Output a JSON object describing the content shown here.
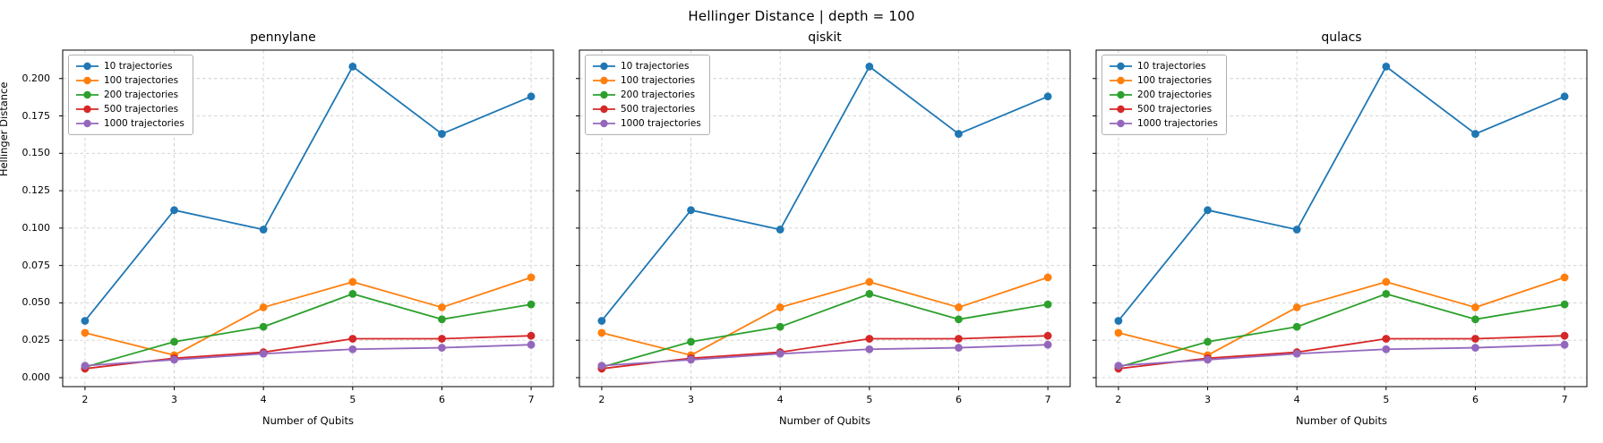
{
  "figure": {
    "title": "Hellinger Distance  |  depth = 100",
    "background_color": "#ffffff"
  },
  "axes": {
    "xlabel": "Number of Qubits",
    "ylabel": "Hellinger Distance",
    "xticks": [
      2,
      3,
      4,
      5,
      6,
      7
    ],
    "xtick_labels": [
      "2",
      "3",
      "4",
      "5",
      "6",
      "7"
    ],
    "yticks": [
      0.0,
      0.025,
      0.05,
      0.075,
      0.1,
      0.125,
      0.15,
      0.175,
      0.2
    ],
    "ytick_labels": [
      "0.000",
      "0.025",
      "0.050",
      "0.075",
      "0.100",
      "0.125",
      "0.150",
      "0.175",
      "0.200"
    ],
    "xlim": [
      1.75,
      7.25
    ],
    "ylim": [
      -0.006,
      0.219
    ],
    "grid": "dashed",
    "grid_color": "#cfcfcf",
    "spine_color": "#000000",
    "legend_position": "upper-left"
  },
  "chart_data": [
    {
      "type": "line",
      "title": "pennylane",
      "xlabel": "Number of Qubits",
      "ylabel": "Hellinger Distance",
      "x": [
        2,
        3,
        4,
        5,
        6,
        7
      ],
      "series": [
        {
          "name": "10 trajectories",
          "color": "#1f77b4",
          "values": [
            0.038,
            0.112,
            0.099,
            0.208,
            0.163,
            0.188
          ]
        },
        {
          "name": "100 trajectories",
          "color": "#ff7f0e",
          "values": [
            0.03,
            0.015,
            0.047,
            0.064,
            0.047,
            0.067
          ]
        },
        {
          "name": "200 trajectories",
          "color": "#2ca02c",
          "values": [
            0.007,
            0.024,
            0.034,
            0.056,
            0.039,
            0.049
          ]
        },
        {
          "name": "500 trajectories",
          "color": "#d62728",
          "values": [
            0.006,
            0.013,
            0.017,
            0.026,
            0.026,
            0.028
          ]
        },
        {
          "name": "1000 trajectories",
          "color": "#9467bd",
          "values": [
            0.008,
            0.012,
            0.016,
            0.019,
            0.02,
            0.022
          ]
        }
      ],
      "xlim": [
        1.75,
        7.25
      ],
      "ylim": [
        -0.006,
        0.219
      ]
    },
    {
      "type": "line",
      "title": "qiskit",
      "xlabel": "Number of Qubits",
      "ylabel": "Hellinger Distance",
      "x": [
        2,
        3,
        4,
        5,
        6,
        7
      ],
      "series": [
        {
          "name": "10 trajectories",
          "color": "#1f77b4",
          "values": [
            0.038,
            0.112,
            0.099,
            0.208,
            0.163,
            0.188
          ]
        },
        {
          "name": "100 trajectories",
          "color": "#ff7f0e",
          "values": [
            0.03,
            0.015,
            0.047,
            0.064,
            0.047,
            0.067
          ]
        },
        {
          "name": "200 trajectories",
          "color": "#2ca02c",
          "values": [
            0.007,
            0.024,
            0.034,
            0.056,
            0.039,
            0.049
          ]
        },
        {
          "name": "500 trajectories",
          "color": "#d62728",
          "values": [
            0.006,
            0.013,
            0.017,
            0.026,
            0.026,
            0.028
          ]
        },
        {
          "name": "1000 trajectories",
          "color": "#9467bd",
          "values": [
            0.008,
            0.012,
            0.016,
            0.019,
            0.02,
            0.022
          ]
        }
      ],
      "xlim": [
        1.75,
        7.25
      ],
      "ylim": [
        -0.006,
        0.219
      ]
    },
    {
      "type": "line",
      "title": "qulacs",
      "xlabel": "Number of Qubits",
      "ylabel": "Hellinger Distance",
      "x": [
        2,
        3,
        4,
        5,
        6,
        7
      ],
      "series": [
        {
          "name": "10 trajectories",
          "color": "#1f77b4",
          "values": [
            0.038,
            0.112,
            0.099,
            0.208,
            0.163,
            0.188
          ]
        },
        {
          "name": "100 trajectories",
          "color": "#ff7f0e",
          "values": [
            0.03,
            0.015,
            0.047,
            0.064,
            0.047,
            0.067
          ]
        },
        {
          "name": "200 trajectories",
          "color": "#2ca02c",
          "values": [
            0.007,
            0.024,
            0.034,
            0.056,
            0.039,
            0.049
          ]
        },
        {
          "name": "500 trajectories",
          "color": "#d62728",
          "values": [
            0.006,
            0.013,
            0.017,
            0.026,
            0.026,
            0.028
          ]
        },
        {
          "name": "1000 trajectories",
          "color": "#9467bd",
          "values": [
            0.008,
            0.012,
            0.016,
            0.019,
            0.02,
            0.022
          ]
        }
      ],
      "xlim": [
        1.75,
        7.25
      ],
      "ylim": [
        -0.006,
        0.219
      ]
    }
  ]
}
